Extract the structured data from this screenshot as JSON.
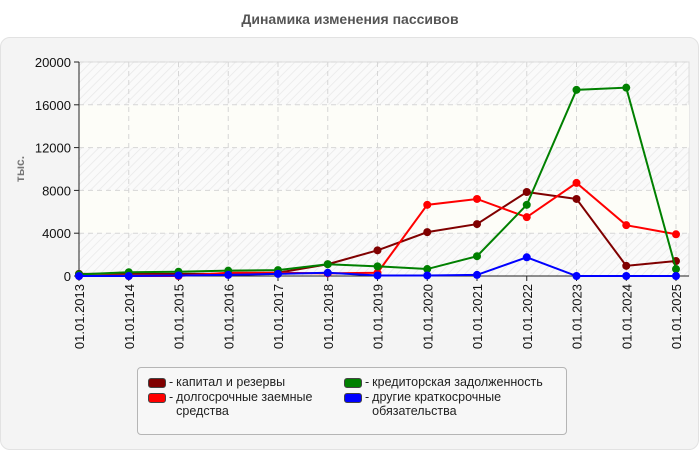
{
  "chart_data": {
    "type": "line",
    "title": "Динамика изменения пассивов",
    "xlabel": "",
    "ylabel": "тыс.",
    "ylim": [
      0,
      20000
    ],
    "yticks": [
      0,
      4000,
      8000,
      12000,
      16000,
      20000
    ],
    "grid": true,
    "legend_position": "bottom",
    "categories": [
      "01.01.2013",
      "01.01.2014",
      "01.01.2015",
      "01.01.2016",
      "01.01.2017",
      "01.01.2018",
      "01.01.2019",
      "01.01.2020",
      "01.01.2021",
      "01.01.2022",
      "01.01.2023",
      "01.01.2024",
      "01.01.2025"
    ],
    "series": [
      {
        "name": "капитал и резервы",
        "color": "#800000",
        "values": [
          200,
          200,
          200,
          200,
          300,
          1100,
          2400,
          4100,
          4850,
          7850,
          7200,
          950,
          1400
        ]
      },
      {
        "name": "долгосрочные заемные средства",
        "color": "#ff0000",
        "values": [
          0,
          0,
          0,
          300,
          300,
          250,
          300,
          6650,
          7200,
          5500,
          8700,
          4750,
          3900
        ]
      },
      {
        "name": "кредиторская задолженность",
        "color": "#008000",
        "values": [
          150,
          350,
          400,
          500,
          550,
          1100,
          900,
          650,
          1850,
          6650,
          17400,
          17600,
          650
        ]
      },
      {
        "name": "другие краткосрочные обязательства",
        "color": "#0000ff",
        "values": [
          0,
          0,
          50,
          100,
          200,
          300,
          50,
          50,
          100,
          1750,
          0,
          0,
          0
        ]
      }
    ]
  },
  "legend": {
    "items": [
      {
        "label": "капитал и резервы",
        "color": "#800000"
      },
      {
        "label": "кредиторская задолженность",
        "color": "#008000"
      },
      {
        "label": "долгосрочные заемные средства",
        "color": "#ff0000"
      },
      {
        "label": "другие краткосрочные обязательства",
        "color": "#0000ff"
      }
    ],
    "dash": "-"
  }
}
